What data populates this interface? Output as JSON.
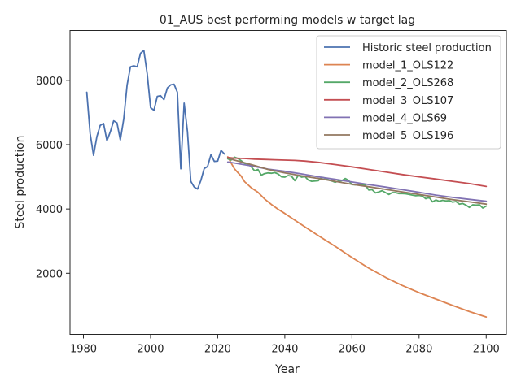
{
  "chart_data": {
    "type": "line",
    "title": "01_AUS best performing models w target lag",
    "xlabel": "Year",
    "ylabel": "Steel production",
    "xlim": [
      1976,
      2106
    ],
    "ylim": [
      100,
      9550
    ],
    "xticks": [
      1980,
      2000,
      2020,
      2040,
      2060,
      2080,
      2100
    ],
    "yticks": [
      2000,
      4000,
      6000,
      8000
    ],
    "grid": false,
    "legend_position": "top-right",
    "series": [
      {
        "name": "Historic steel production",
        "color": "#4c72b0",
        "x": [
          1981,
          1982,
          1983,
          1984,
          1985,
          1986,
          1987,
          1988,
          1989,
          1990,
          1991,
          1992,
          1993,
          1994,
          1995,
          1996,
          1997,
          1998,
          1999,
          2000,
          2001,
          2002,
          2003,
          2004,
          2005,
          2006,
          2007,
          2008,
          2009,
          2010,
          2011,
          2012,
          2013,
          2014,
          2015,
          2016,
          2017,
          2018,
          2019,
          2020,
          2021,
          2022
        ],
        "y": [
          7630,
          6350,
          5670,
          6250,
          6600,
          6660,
          6120,
          6400,
          6740,
          6680,
          6150,
          6800,
          7850,
          8420,
          8450,
          8420,
          8840,
          8930,
          8210,
          7150,
          7070,
          7500,
          7520,
          7400,
          7760,
          7860,
          7880,
          7630,
          5250,
          7290,
          6410,
          4860,
          4680,
          4620,
          4890,
          5260,
          5320,
          5690,
          5480,
          5490,
          5820,
          5710
        ]
      },
      {
        "name": "model_1_OLS122",
        "color": "#dd8452",
        "x": [
          2023,
          2024,
          2025,
          2026,
          2027,
          2028,
          2030,
          2032,
          2034,
          2036,
          2038,
          2040,
          2045,
          2050,
          2055,
          2060,
          2065,
          2070,
          2075,
          2080,
          2085,
          2090,
          2095,
          2100
        ],
        "y": [
          5620,
          5430,
          5250,
          5130,
          5020,
          4850,
          4660,
          4520,
          4310,
          4140,
          3990,
          3860,
          3510,
          3170,
          2840,
          2490,
          2160,
          1870,
          1620,
          1400,
          1200,
          1000,
          810,
          640
        ]
      },
      {
        "name": "model_2_OLS268",
        "color": "#55a868",
        "x": [
          2023,
          2024,
          2025,
          2026,
          2027,
          2028,
          2029,
          2030,
          2031,
          2032,
          2033,
          2034,
          2035,
          2036,
          2037,
          2038,
          2039,
          2040,
          2041,
          2042,
          2043,
          2044,
          2045,
          2046,
          2047,
          2048,
          2049,
          2050,
          2051,
          2052,
          2053,
          2054,
          2055,
          2056,
          2057,
          2058,
          2059,
          2060,
          2061,
          2062,
          2063,
          2064,
          2065,
          2066,
          2067,
          2068,
          2069,
          2070,
          2071,
          2072,
          2073,
          2074,
          2075,
          2076,
          2077,
          2078,
          2079,
          2080,
          2081,
          2082,
          2083,
          2084,
          2085,
          2086,
          2087,
          2088,
          2089,
          2090,
          2091,
          2092,
          2093,
          2094,
          2095,
          2096,
          2097,
          2098,
          2099,
          2100
        ],
        "y": [
          5560,
          5520,
          5610,
          5570,
          5500,
          5420,
          5400,
          5310,
          5190,
          5230,
          5050,
          5100,
          5120,
          5110,
          5130,
          5090,
          5000,
          4990,
          5040,
          5020,
          4880,
          5040,
          4990,
          5010,
          4900,
          4860,
          4870,
          4880,
          4990,
          4960,
          4900,
          4870,
          4830,
          4870,
          4880,
          4950,
          4890,
          4760,
          4750,
          4770,
          4760,
          4740,
          4590,
          4600,
          4500,
          4530,
          4570,
          4510,
          4450,
          4510,
          4510,
          4480,
          4480,
          4470,
          4450,
          4430,
          4410,
          4420,
          4400,
          4320,
          4360,
          4220,
          4280,
          4240,
          4270,
          4250,
          4260,
          4210,
          4230,
          4150,
          4170,
          4120,
          4050,
          4130,
          4120,
          4130,
          4030,
          4090
        ]
      },
      {
        "name": "model_3_OLS107",
        "color": "#c44e52",
        "x": [
          2023,
          2025,
          2028,
          2031,
          2034,
          2037,
          2040,
          2043,
          2046,
          2050,
          2055,
          2060,
          2065,
          2070,
          2075,
          2080,
          2085,
          2090,
          2095,
          2100
        ],
        "y": [
          5600,
          5580,
          5570,
          5550,
          5540,
          5530,
          5520,
          5510,
          5490,
          5450,
          5380,
          5310,
          5230,
          5150,
          5070,
          5000,
          4930,
          4860,
          4790,
          4700
        ]
      },
      {
        "name": "model_4_OLS69",
        "color": "#8172b3",
        "x": [
          2023,
          2025,
          2030,
          2035,
          2040,
          2045,
          2050,
          2055,
          2060,
          2065,
          2070,
          2075,
          2080,
          2085,
          2090,
          2095,
          2100
        ],
        "y": [
          5460,
          5430,
          5340,
          5240,
          5170,
          5090,
          5000,
          4920,
          4840,
          4760,
          4680,
          4600,
          4520,
          4430,
          4360,
          4300,
          4240
        ]
      },
      {
        "name": "model_5_OLS196",
        "color": "#937860",
        "x": [
          2023,
          2025,
          2030,
          2035,
          2040,
          2045,
          2050,
          2055,
          2060,
          2065,
          2070,
          2075,
          2080,
          2085,
          2090,
          2095,
          2100
        ],
        "y": [
          5580,
          5520,
          5380,
          5230,
          5120,
          5030,
          4950,
          4860,
          4770,
          4690,
          4610,
          4530,
          4450,
          4370,
          4290,
          4220,
          4150
        ]
      }
    ]
  }
}
